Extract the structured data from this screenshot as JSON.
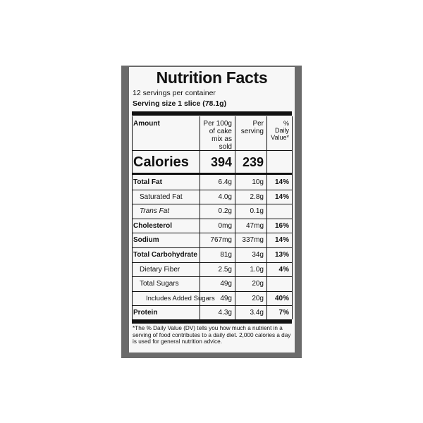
{
  "header": {
    "title": "Nutrition Facts",
    "servings": "12 servings per container",
    "serving_size": "Serving size 1 slice (78.1g)"
  },
  "table": {
    "columns": [
      "Amount",
      "Per 100g of cake mix as sold",
      "Per serving",
      "% Daily Value*"
    ],
    "calories": [
      "Calories",
      "394",
      "239"
    ],
    "rows": [
      [
        "Total Fat",
        "6.4g",
        "10g",
        "14%"
      ],
      [
        "Saturated Fat",
        "4.0g",
        "2.8g",
        "14%"
      ],
      [
        "Trans Fat",
        "0.2g",
        "0.1g",
        null
      ],
      [
        "Cholesterol",
        "0mg",
        "47mg",
        "16%"
      ],
      [
        "Sodium",
        "767mg",
        "337mg",
        "14%"
      ],
      [
        "Total Carbohydrate",
        "81g",
        "34g",
        "13%"
      ],
      [
        "Dietary Fiber",
        "2.5g",
        "1.0g",
        "4%"
      ],
      [
        "Total Sugars",
        "49g",
        "20g",
        null
      ],
      [
        "Includes Added Sugars",
        "49g",
        "20g",
        "40%"
      ],
      [
        "Protein",
        "4.3g",
        "3.4g",
        "7%"
      ]
    ]
  },
  "footnote": "*The % Daily Value (DV) tells you how much a nutrient in a serving of food contributes to a daily diet. 2,000 calories a day is used for general nutrition advice."
}
